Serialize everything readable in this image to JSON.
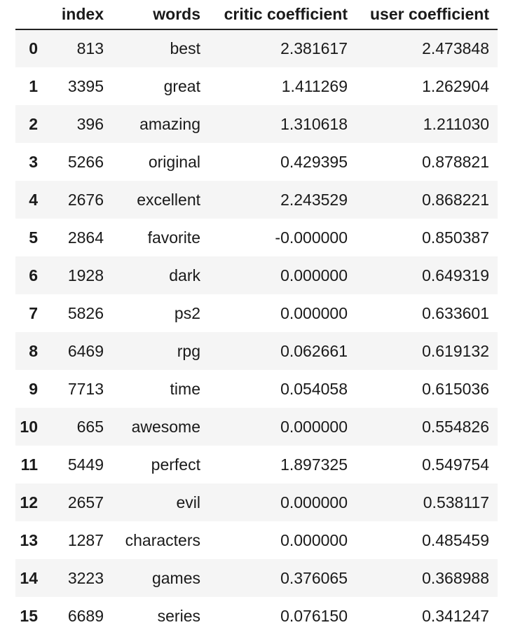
{
  "table": {
    "columns": [
      "",
      "index",
      "words",
      "critic coefficient",
      "user coefficient"
    ],
    "rows": [
      {
        "idx": "0",
        "index": "813",
        "words": "best",
        "critic": "2.381617",
        "user": "2.473848"
      },
      {
        "idx": "1",
        "index": "3395",
        "words": "great",
        "critic": "1.411269",
        "user": "1.262904"
      },
      {
        "idx": "2",
        "index": "396",
        "words": "amazing",
        "critic": "1.310618",
        "user": "1.211030"
      },
      {
        "idx": "3",
        "index": "5266",
        "words": "original",
        "critic": "0.429395",
        "user": "0.878821"
      },
      {
        "idx": "4",
        "index": "2676",
        "words": "excellent",
        "critic": "2.243529",
        "user": "0.868221"
      },
      {
        "idx": "5",
        "index": "2864",
        "words": "favorite",
        "critic": "-0.000000",
        "user": "0.850387"
      },
      {
        "idx": "6",
        "index": "1928",
        "words": "dark",
        "critic": "0.000000",
        "user": "0.649319"
      },
      {
        "idx": "7",
        "index": "5826",
        "words": "ps2",
        "critic": "0.000000",
        "user": "0.633601"
      },
      {
        "idx": "8",
        "index": "6469",
        "words": "rpg",
        "critic": "0.062661",
        "user": "0.619132"
      },
      {
        "idx": "9",
        "index": "7713",
        "words": "time",
        "critic": "0.054058",
        "user": "0.615036"
      },
      {
        "idx": "10",
        "index": "665",
        "words": "awesome",
        "critic": "0.000000",
        "user": "0.554826"
      },
      {
        "idx": "11",
        "index": "5449",
        "words": "perfect",
        "critic": "1.897325",
        "user": "0.549754"
      },
      {
        "idx": "12",
        "index": "2657",
        "words": "evil",
        "critic": "0.000000",
        "user": "0.538117"
      },
      {
        "idx": "13",
        "index": "1287",
        "words": "characters",
        "critic": "0.000000",
        "user": "0.485459"
      },
      {
        "idx": "14",
        "index": "3223",
        "words": "games",
        "critic": "0.376065",
        "user": "0.368988"
      },
      {
        "idx": "15",
        "index": "6689",
        "words": "series",
        "critic": "0.076150",
        "user": "0.341247"
      }
    ]
  }
}
